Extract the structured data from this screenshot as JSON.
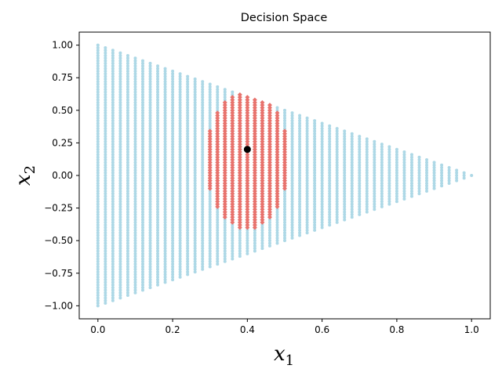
{
  "chart_data": {
    "type": "scatter",
    "title": "Decision Space",
    "xlabel": {
      "base": "x",
      "sub": "1"
    },
    "ylabel": {
      "base": "x",
      "sub": "2"
    },
    "xlim": [
      -0.05,
      1.05
    ],
    "ylim": [
      -1.1,
      1.1
    ],
    "xticks": [
      0.0,
      0.2,
      0.4,
      0.6,
      0.8,
      1.0
    ],
    "yticks": [
      -1.0,
      -0.75,
      -0.5,
      -0.25,
      0.0,
      0.25,
      0.5,
      0.75,
      1.0
    ],
    "xtick_labels": [
      "0.0",
      "0.2",
      "0.4",
      "0.6",
      "0.8",
      "1.0"
    ],
    "ytick_labels": [
      "−1.00",
      "−0.75",
      "−0.50",
      "−0.25",
      "0.00",
      "0.25",
      "0.50",
      "0.75",
      "1.00"
    ],
    "grid": false,
    "legend": "none",
    "series": [
      {
        "marker": "circle",
        "color": "#add8e6",
        "region": "triangle",
        "vertices": [
          [
            0.0,
            1.0
          ],
          [
            0.0,
            -1.0
          ],
          [
            1.0,
            0.0
          ]
        ],
        "x_step": 0.02,
        "y_step": 0.02
      },
      {
        "marker": "diamond",
        "color": "#e8726c",
        "region": "ellipse",
        "center": [
          0.4,
          0.12
        ],
        "semi_axes": [
          0.11,
          0.53
        ],
        "x_range": [
          0.3,
          0.52
        ],
        "x_step": 0.02,
        "y_step": 0.02
      },
      {
        "marker": "circle",
        "color": "#000000",
        "points": [
          [
            0.4,
            0.2
          ]
        ]
      }
    ]
  }
}
